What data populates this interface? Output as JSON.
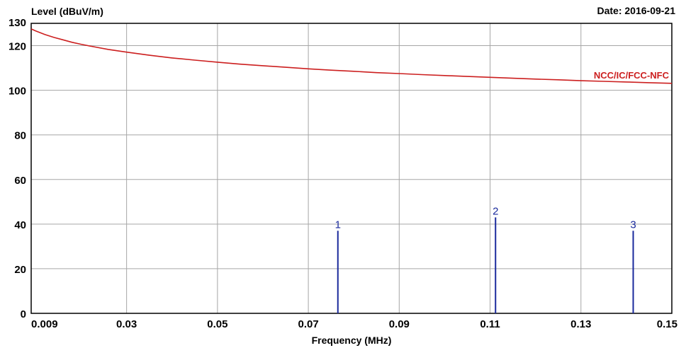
{
  "chart_data": {
    "type": "line",
    "ylabel": "Level (dBuV/m)",
    "xlabel": "Frequency (MHz)",
    "date_text": "Date: 2016-09-21",
    "xlim": [
      0.009,
      0.15
    ],
    "ylim": [
      0,
      130
    ],
    "x_ticks": [
      0.009,
      0.03,
      0.05,
      0.07,
      0.09,
      0.11,
      0.13,
      0.15
    ],
    "x_tick_labels": [
      "0.009",
      "0.03",
      "0.05",
      "0.07",
      "0.09",
      "0.11",
      "0.13",
      "0.15"
    ],
    "y_ticks": [
      0,
      20,
      40,
      60,
      80,
      100,
      120,
      130
    ],
    "y_tick_labels": [
      "0",
      "20",
      "40",
      "60",
      "80",
      "100",
      "120",
      "130"
    ],
    "grid": true,
    "series": [
      {
        "name": "NCC/IC/FCC-NFC",
        "kind": "limit-line",
        "color": "#cc1f1f",
        "x": [
          0.009,
          0.01,
          0.011,
          0.012,
          0.014,
          0.016,
          0.018,
          0.02,
          0.023,
          0.026,
          0.03,
          0.035,
          0.04,
          0.045,
          0.05,
          0.055,
          0.06,
          0.065,
          0.07,
          0.075,
          0.08,
          0.085,
          0.09,
          0.095,
          0.1,
          0.105,
          0.11,
          0.115,
          0.12,
          0.125,
          0.13,
          0.135,
          0.14,
          0.145,
          0.15
        ],
        "y": [
          127.5,
          126.6,
          125.8,
          125.0,
          123.7,
          122.6,
          121.5,
          120.6,
          119.4,
          118.3,
          117.1,
          115.7,
          114.5,
          113.5,
          112.6,
          111.7,
          111.0,
          110.3,
          109.6,
          109.0,
          108.5,
          107.9,
          107.5,
          107.0,
          106.6,
          106.2,
          105.8,
          105.4,
          105.0,
          104.7,
          104.3,
          104.0,
          103.7,
          103.4,
          103.1
        ]
      }
    ],
    "markers": [
      {
        "label": "1",
        "x": 0.0765,
        "y": 37
      },
      {
        "label": "2",
        "x": 0.1112,
        "y": 43
      },
      {
        "label": "3",
        "x": 0.1415,
        "y": 37
      }
    ],
    "marker_color": "#1a2a9c",
    "grid_color": "#a6a6a6",
    "axis_color": "#000000"
  }
}
